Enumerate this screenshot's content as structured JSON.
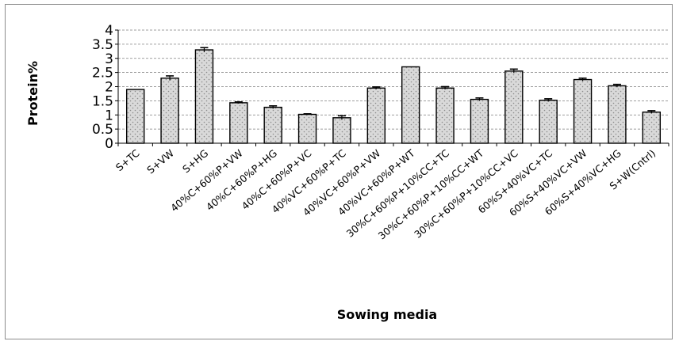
{
  "chart_data": {
    "type": "bar",
    "title": "",
    "xlabel": "Sowing media",
    "ylabel": "Protein%",
    "ylim": [
      0,
      4
    ],
    "yticks": [
      "0",
      "0.5",
      "1",
      "1.5",
      "2",
      "2.5",
      "3",
      "3.5",
      "4"
    ],
    "grid": "horizontal dashed",
    "legend": "none",
    "bar_fill": "#d9d9d9",
    "bar_stroke": "#000000",
    "categories": [
      "S+TC",
      "S+VW",
      "S+HG",
      "40%C+60%P+VW",
      "40%C+60%P+HG",
      "40%C+60%P+VC",
      "40%VC+60%P+TC",
      "40%VC+60%P+VW",
      "40%VC+60%P+WT",
      "30%C+60%P+10%CC+TC",
      "30%C+60%P+10%CC+WT",
      "30%C+60%P+10%CC+VC",
      "60%S+40%VC+TC",
      "60%S+40%VC+VW",
      "60%S+40%VC+HG",
      "S+W(Cntrl)"
    ],
    "values": [
      1.9,
      2.3,
      3.3,
      1.43,
      1.27,
      1.02,
      0.9,
      1.95,
      2.7,
      1.95,
      1.55,
      2.55,
      1.52,
      2.25,
      2.03,
      1.1
    ],
    "errors": [
      0.0,
      0.08,
      0.08,
      0.03,
      0.05,
      0.02,
      0.07,
      0.04,
      0.0,
      0.05,
      0.05,
      0.07,
      0.05,
      0.05,
      0.05,
      0.05
    ]
  }
}
